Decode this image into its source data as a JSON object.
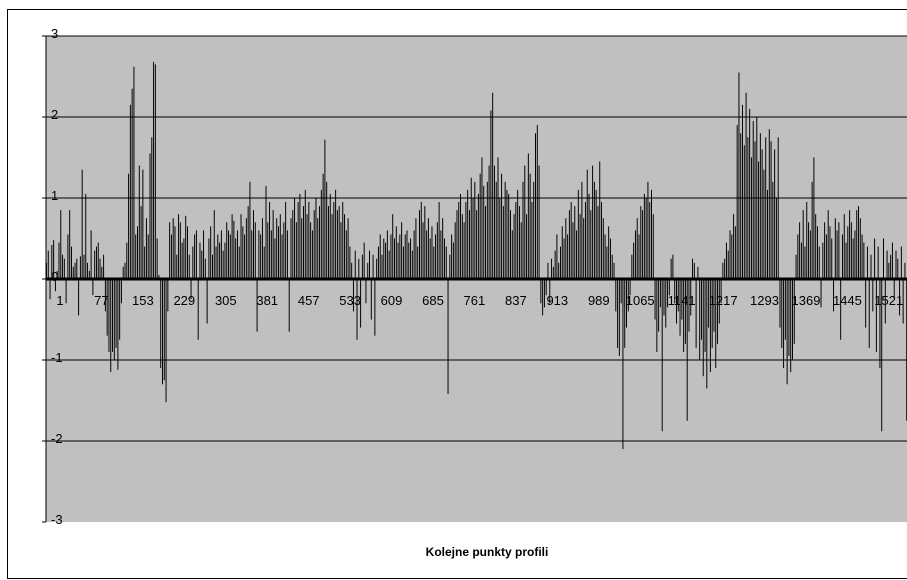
{
  "chart_data": {
    "type": "bar",
    "title": "",
    "xlabel": "Kolejne punkty profili",
    "ylabel": "",
    "ylim": [
      -3,
      3
    ],
    "yticks": [
      -3,
      -2,
      -1,
      0,
      1,
      2,
      3
    ],
    "grid": true,
    "legend": "none",
    "colors": {
      "plot_background": "#c0c0c0",
      "bar": "#000000",
      "gridline": "#000000"
    },
    "x_tick_labels": [
      "1",
      "77",
      "153",
      "229",
      "305",
      "381",
      "457",
      "533",
      "609",
      "685",
      "761",
      "837",
      "913",
      "989",
      "1065",
      "1141",
      "1217",
      "1293",
      "1369",
      "1445",
      "1521"
    ],
    "x_tick_step": 76,
    "series": [
      {
        "sampling_note_omitted": true,
        "values": [
          0.2,
          0.35,
          -0.25,
          0.42,
          0.48,
          -0.15,
          0.1,
          0.45,
          0.85,
          0.3,
          0.25,
          -0.3,
          0.55,
          0.85,
          0.4,
          0.15,
          0.2,
          0.25,
          -0.45,
          0.28,
          1.35,
          0.3,
          1.05,
          0.2,
          0.1,
          0.6,
          -0.2,
          0.35,
          0.4,
          0.45,
          0.25,
          0.15,
          0.3,
          -0.4,
          -0.7,
          -0.9,
          -1.15,
          -0.9,
          -1.0,
          -0.85,
          -1.12,
          -0.75,
          -0.3,
          0.15,
          0.2,
          0.45,
          1.3,
          2.15,
          2.35,
          2.62,
          0.55,
          0.65,
          1.4,
          0.9,
          1.35,
          0.4,
          0.75,
          0.55,
          1.55,
          1.75,
          2.68,
          2.65,
          0.5,
          0.05,
          -1.1,
          -1.3,
          -1.25,
          -1.52,
          -0.4,
          0.7,
          0.55,
          0.75,
          0.65,
          0.3,
          0.8,
          0.7,
          0.45,
          0.5,
          0.78,
          0.65,
          0.3,
          -0.25,
          0.4,
          0.55,
          0.6,
          -0.75,
          0.45,
          0.35,
          0.6,
          0.25,
          -0.55,
          0.5,
          0.65,
          0.3,
          0.85,
          0.4,
          0.55,
          0.45,
          0.6,
          0.35,
          0.45,
          0.7,
          0.6,
          0.55,
          0.8,
          0.72,
          0.5,
          0.6,
          0.4,
          0.8,
          0.65,
          0.55,
          0.75,
          0.9,
          1.2,
          0.6,
          0.85,
          0.7,
          -0.65,
          0.6,
          0.55,
          0.75,
          0.4,
          1.15,
          0.7,
          0.95,
          0.6,
          0.85,
          0.5,
          0.75,
          0.65,
          0.8,
          0.55,
          0.7,
          0.95,
          0.6,
          -0.65,
          0.75,
          0.85,
          1.0,
          0.7,
          0.95,
          1.05,
          0.75,
          0.9,
          1.1,
          0.8,
          0.95,
          0.7,
          0.6,
          0.85,
          1.0,
          0.75,
          0.9,
          1.1,
          1.3,
          1.72,
          1.2,
          0.9,
          1.05,
          0.8,
          0.95,
          1.1,
          0.85,
          0.9,
          0.7,
          0.95,
          0.8,
          0.6,
          0.75,
          0.4,
          0.2,
          -0.4,
          0.35,
          -0.75,
          0.25,
          -0.6,
          0.3,
          0.45,
          -0.3,
          0.2,
          0.35,
          -0.5,
          0.3,
          -0.7,
          0.25,
          0.4,
          0.55,
          0.3,
          0.5,
          0.45,
          0.6,
          0.35,
          0.55,
          0.8,
          0.5,
          0.65,
          0.45,
          0.55,
          0.7,
          0.4,
          0.55,
          0.6,
          0.45,
          0.5,
          0.35,
          0.6,
          0.75,
          0.4,
          0.85,
          0.95,
          0.7,
          0.9,
          0.6,
          0.75,
          0.5,
          0.65,
          0.4,
          0.55,
          0.7,
          0.95,
          0.6,
          0.75,
          0.5,
          0.4,
          -1.42,
          0.3,
          0.55,
          0.45,
          0.7,
          0.85,
          0.95,
          1.05,
          0.8,
          0.7,
          0.95,
          1.1,
          0.85,
          1.25,
          1.0,
          1.2,
          0.85,
          1.05,
          1.3,
          1.5,
          1.15,
          0.9,
          1.2,
          1.4,
          2.08,
          2.3,
          1.4,
          1.2,
          1.5,
          1.0,
          1.3,
          0.9,
          1.2,
          1.1,
          1.05,
          0.85,
          0.6,
          0.8,
          0.95,
          1.1,
          0.9,
          0.7,
          1.2,
          1.4,
          0.8,
          1.55,
          1.3,
          0.95,
          1.2,
          1.8,
          1.9,
          1.4,
          -0.3,
          -0.45,
          -0.35,
          -0.2,
          0.2,
          -0.3,
          0.25,
          0.15,
          0.35,
          0.55,
          0.2,
          0.4,
          0.65,
          0.5,
          0.75,
          0.55,
          0.85,
          0.95,
          0.7,
          0.9,
          0.6,
          1.1,
          0.8,
          1.2,
          0.75,
          0.95,
          1.35,
          1.05,
          0.85,
          1.4,
          1.2,
          1.1,
          0.9,
          1.45,
          0.95,
          0.75,
          0.55,
          0.4,
          0.65,
          0.5,
          0.3,
          0.2,
          -0.4,
          -0.85,
          -0.95,
          -0.3,
          -2.1,
          -0.85,
          -0.6,
          -0.4,
          -0.2,
          0.3,
          0.45,
          0.6,
          0.75,
          0.55,
          0.9,
          0.85,
          1.05,
          1.0,
          1.2,
          0.95,
          1.1,
          0.8,
          -0.5,
          -0.9,
          -0.65,
          -0.35,
          -1.88,
          -0.45,
          -0.6,
          -0.35,
          -0.2,
          0.25,
          0.3,
          -0.3,
          -0.55,
          -0.4,
          -0.7,
          -0.5,
          -0.9,
          -0.8,
          -1.75,
          -0.65,
          -0.45,
          0.25,
          0.2,
          -0.85,
          0.15,
          -1.0,
          -0.75,
          -1.2,
          -0.9,
          -1.35,
          -0.6,
          -1.15,
          -0.85,
          -0.65,
          -1.1,
          -0.8,
          -0.55,
          -0.3,
          0.2,
          0.25,
          0.45,
          0.35,
          0.6,
          0.55,
          0.8,
          0.65,
          1.9,
          2.55,
          1.8,
          2.15,
          1.65,
          2.3,
          1.75,
          2.1,
          1.5,
          1.95,
          1.7,
          2.0,
          1.45,
          1.8,
          1.6,
          1.35,
          1.75,
          1.1,
          1.85,
          1.7,
          1.2,
          1.6,
          1.0,
          1.75,
          -0.6,
          -0.85,
          -1.1,
          -0.75,
          -1.3,
          -0.95,
          -1.15,
          -1.0,
          -0.8,
          0.3,
          0.55,
          0.7,
          0.45,
          0.85,
          0.4,
          0.95,
          0.7,
          0.6,
          1.2,
          1.5,
          0.8,
          0.65,
          0.4,
          -0.35,
          0.45,
          0.7,
          0.55,
          0.85,
          0.65,
          0.5,
          -0.4,
          0.75,
          0.6,
          0.7,
          -0.75,
          0.55,
          0.8,
          0.45,
          0.65,
          0.85,
          0.7,
          0.5,
          0.6,
          0.85,
          0.9,
          0.75,
          0.55,
          0.45,
          -0.6,
          0.4,
          -0.85,
          0.3,
          -0.4,
          0.5,
          -0.9,
          0.4,
          -1.1,
          -1.88,
          0.5,
          -0.55,
          0.35,
          0.2,
          0.3,
          0.45,
          -0.25,
          0.35,
          0.25,
          -0.45,
          0.4,
          -0.55,
          0.2,
          -1.75
        ]
      }
    ]
  }
}
